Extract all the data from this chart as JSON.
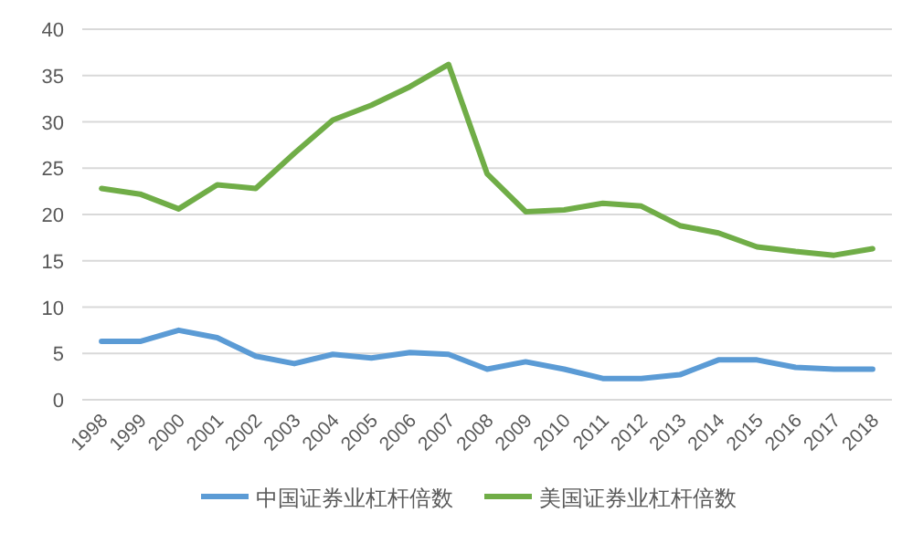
{
  "chart_data": {
    "type": "line",
    "categories": [
      "1998",
      "1999",
      "2000",
      "2001",
      "2002",
      "2003",
      "2004",
      "2005",
      "2006",
      "2007",
      "2008",
      "2009",
      "2010",
      "2011",
      "2012",
      "2013",
      "2014",
      "2015",
      "2016",
      "2017",
      "2018"
    ],
    "series": [
      {
        "name": "中国证券业杠杆倍数",
        "color": "#5b9bd5",
        "values": [
          6.3,
          6.3,
          7.5,
          6.7,
          4.7,
          3.9,
          4.9,
          4.5,
          5.1,
          4.9,
          3.3,
          4.1,
          3.3,
          2.3,
          2.3,
          2.7,
          4.3,
          4.3,
          3.5,
          3.3,
          3.3
        ]
      },
      {
        "name": "美国证券业杠杆倍数",
        "color": "#70ad47",
        "values": [
          22.8,
          22.2,
          20.6,
          23.2,
          22.8,
          26.6,
          30.2,
          31.8,
          33.8,
          36.2,
          24.4,
          20.3,
          20.5,
          21.2,
          20.9,
          18.8,
          18.0,
          16.5,
          16.0,
          15.6,
          16.3
        ]
      }
    ],
    "ylim": [
      0,
      40
    ],
    "yticks": [
      0,
      5,
      10,
      15,
      20,
      25,
      30,
      35,
      40
    ],
    "grid": "y",
    "legend": "bottom",
    "marker": "none",
    "line_style": "solid"
  }
}
